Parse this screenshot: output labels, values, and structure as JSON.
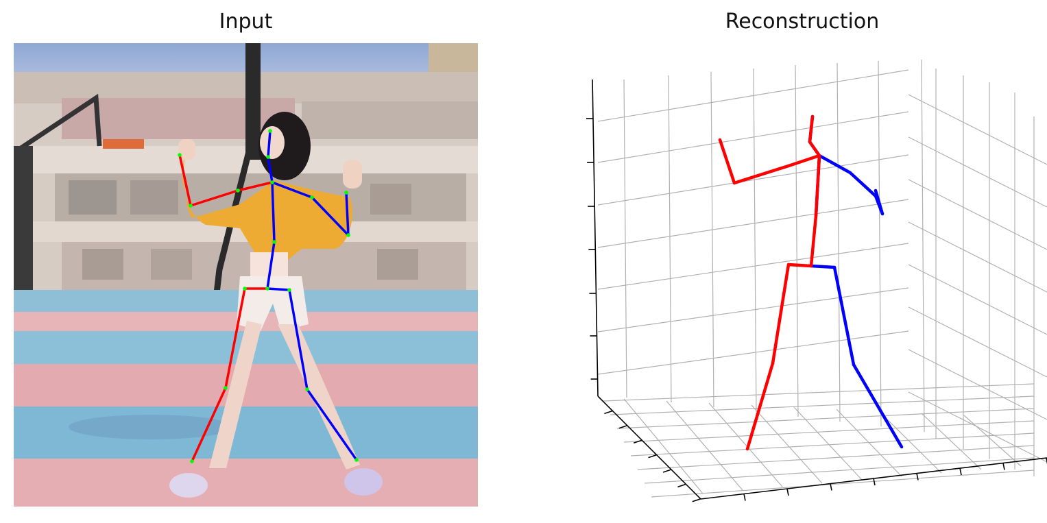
{
  "panels": {
    "input": {
      "title": "Input"
    },
    "reconstruction": {
      "title": "Reconstruction"
    }
  },
  "colors": {
    "left_limb": "#ff0000",
    "right_limb": "#0000ff",
    "joint": "#00ff00",
    "grid": "#b0b0b0",
    "axis": "#000000"
  },
  "skeleton_2d": {
    "joint_names": [
      "hip",
      "r_hip",
      "r_knee",
      "r_ankle",
      "l_hip",
      "l_knee",
      "l_ankle",
      "spine",
      "thorax",
      "neck",
      "head",
      "l_shoulder",
      "l_elbow",
      "l_wrist",
      "r_shoulder",
      "r_elbow",
      "r_wrist"
    ],
    "bones_left": [
      [
        "hip",
        "r_hip"
      ],
      [
        "r_hip",
        "r_knee"
      ],
      [
        "r_knee",
        "r_ankle"
      ],
      [
        "thorax",
        "l_shoulder"
      ],
      [
        "l_shoulder",
        "l_elbow"
      ],
      [
        "l_elbow",
        "l_wrist"
      ]
    ],
    "bones_right": [
      [
        "hip",
        "l_hip"
      ],
      [
        "l_hip",
        "l_knee"
      ],
      [
        "l_knee",
        "l_ankle"
      ],
      [
        "hip",
        "spine"
      ],
      [
        "spine",
        "thorax"
      ],
      [
        "thorax",
        "neck"
      ],
      [
        "neck",
        "head"
      ],
      [
        "thorax",
        "r_shoulder"
      ],
      [
        "r_shoulder",
        "r_elbow"
      ],
      [
        "r_elbow",
        "r_wrist"
      ]
    ]
  }
}
